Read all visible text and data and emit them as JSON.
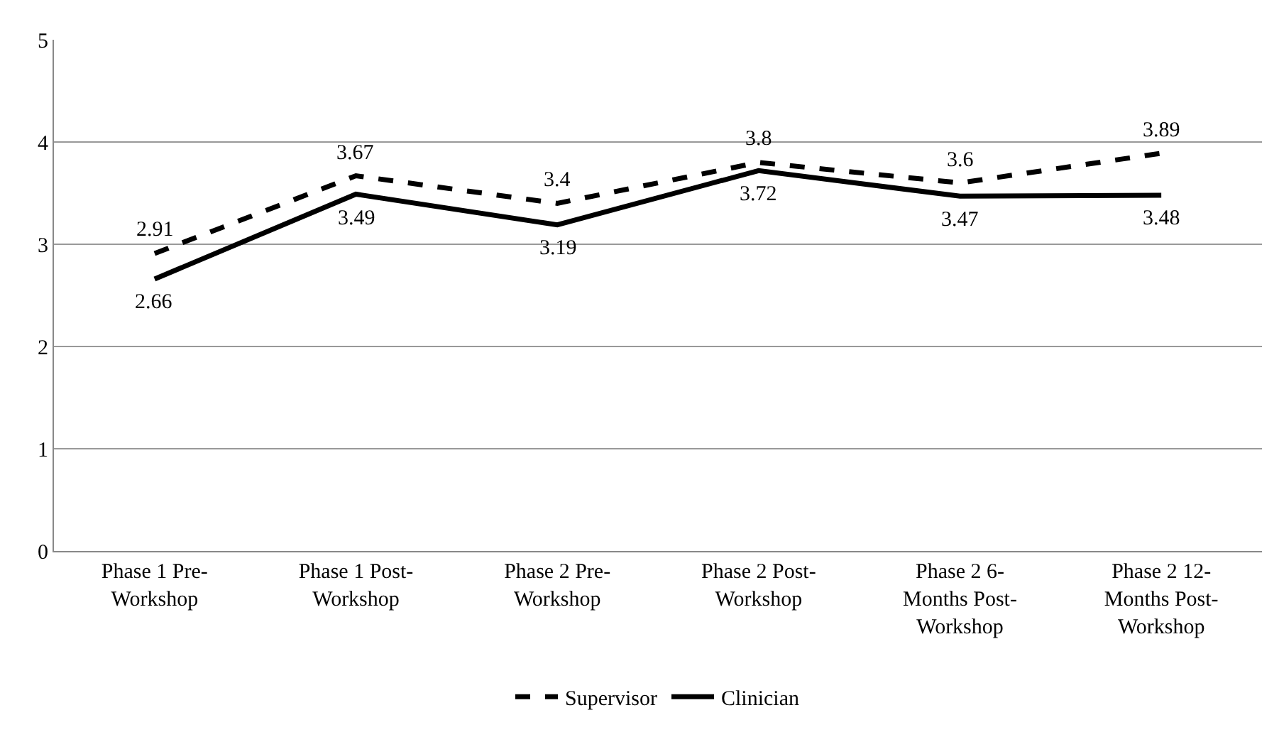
{
  "chart_data": {
    "type": "line",
    "categories": [
      "Phase 1 Pre-\nWorkshop",
      "Phase 1 Post-\nWorkshop",
      "Phase 2 Pre-\nWorkshop",
      "Phase 2 Post-\nWorkshop",
      "Phase 2 6-\nMonths Post-\nWorkshop",
      "Phase 2 12-\nMonths Post-\nWorkshop"
    ],
    "series": [
      {
        "name": "Supervisor",
        "color": "#000000",
        "line_style": "dashed",
        "values": [
          2.91,
          3.67,
          3.4,
          3.8,
          3.6,
          3.89
        ]
      },
      {
        "name": "Clinician",
        "color": "#000000",
        "line_style": "solid",
        "values": [
          2.66,
          3.49,
          3.19,
          3.72,
          3.47,
          3.48
        ]
      }
    ],
    "ylim": [
      0,
      5
    ],
    "yticks": [
      0,
      1,
      2,
      3,
      4,
      5
    ],
    "grid": "y",
    "legend": "bottom",
    "data_labels": true
  }
}
